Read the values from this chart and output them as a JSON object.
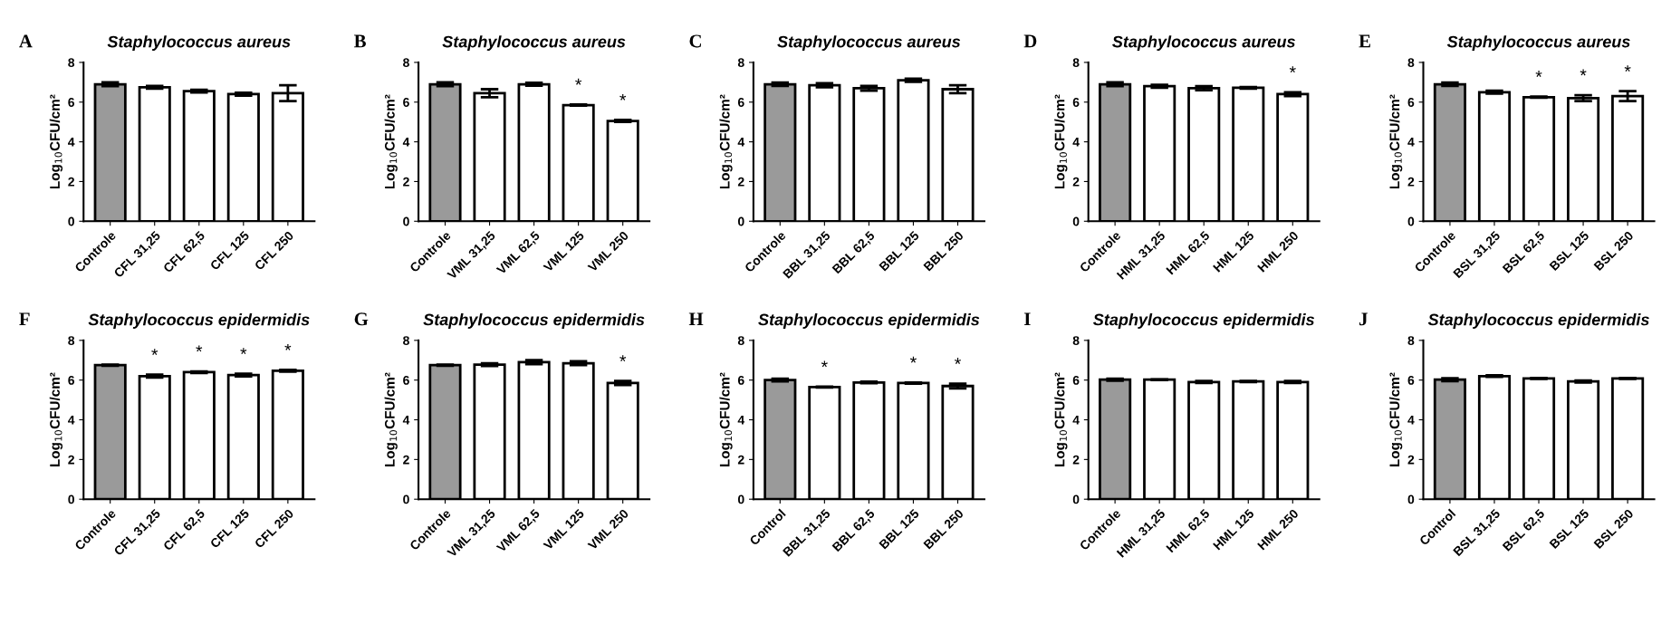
{
  "chart_data": [
    {
      "type": "bar",
      "title": "Staphylococcus aureus",
      "ylabel": "Log$_{10}$CFU/cm²",
      "categories": [
        "Controle",
        "CFL 31,25",
        "CFL 62,5",
        "CFL 125",
        "CFL 250"
      ],
      "values": [
        6.9,
        6.75,
        6.55,
        6.4,
        6.45
      ],
      "errors": [
        0.1,
        0.07,
        0.07,
        0.07,
        0.4
      ],
      "colors": [
        "#9a9a9a",
        "#ffffff",
        "#ffffff",
        "#ffffff",
        "#ffffff"
      ],
      "ylim": [
        0,
        8
      ],
      "yticks": [
        0,
        2,
        4,
        6,
        8
      ],
      "grid": false,
      "annotations": [
        "A"
      ]
    },
    {
      "type": "bar",
      "title": "Staphylococcus aureus",
      "ylabel": "Log$_{10}$CFU/cm²",
      "categories": [
        "Controle",
        "VML 31,25",
        "VML 62,5",
        "VML 125",
        "VML 250"
      ],
      "values": [
        6.9,
        6.45,
        6.9,
        5.85,
        5.05
      ],
      "errors": [
        0.1,
        0.2,
        0.07,
        0.03,
        0.05
      ],
      "colors": [
        "#9a9a9a",
        "#ffffff",
        "#ffffff",
        "#ffffff",
        "#ffffff"
      ],
      "ylim": [
        0,
        8
      ],
      "yticks": [
        0,
        2,
        4,
        6,
        8
      ],
      "grid": false,
      "annotations": [
        "B",
        {
          "text": "*",
          "x": "VML 125",
          "y": 5.85
        },
        {
          "text": "*",
          "x": "VML 250",
          "y": 5.05
        }
      ]
    },
    {
      "type": "bar",
      "title": "Staphylococcus aureus",
      "ylabel": "Log$_{10}$CFU/cm²",
      "categories": [
        "Controle",
        "BBL 31,25",
        "BBL 62,5",
        "BBL 125",
        "BBL 250"
      ],
      "values": [
        6.9,
        6.85,
        6.7,
        7.1,
        6.65
      ],
      "errors": [
        0.08,
        0.1,
        0.12,
        0.08,
        0.2
      ],
      "colors": [
        "#9a9a9a",
        "#ffffff",
        "#ffffff",
        "#ffffff",
        "#ffffff"
      ],
      "ylim": [
        0,
        8
      ],
      "yticks": [
        0,
        2,
        4,
        6,
        8
      ],
      "grid": false,
      "annotations": [
        "C"
      ]
    },
    {
      "type": "bar",
      "title": "Staphylococcus aureus",
      "ylabel": "Log$_{10}$CFU/cm²",
      "categories": [
        "Controle",
        "HML 31,25",
        "HML 62,5",
        "HML 125",
        "HML 250"
      ],
      "values": [
        6.9,
        6.8,
        6.7,
        6.72,
        6.4
      ],
      "errors": [
        0.1,
        0.07,
        0.1,
        0.04,
        0.1
      ],
      "colors": [
        "#9a9a9a",
        "#ffffff",
        "#ffffff",
        "#ffffff",
        "#ffffff"
      ],
      "ylim": [
        0,
        8
      ],
      "yticks": [
        0,
        2,
        4,
        6,
        8
      ],
      "grid": false,
      "annotations": [
        "D",
        {
          "text": "*",
          "x": "HML 250",
          "y": 6.4
        }
      ]
    },
    {
      "type": "bar",
      "title": "Staphylococcus aureus",
      "ylabel": "Log$_{10}$CFU/cm²",
      "categories": [
        "Controle",
        "BSL 31,25",
        "BSL 62,5",
        "BSL 125",
        "BSL 250"
      ],
      "values": [
        6.9,
        6.5,
        6.25,
        6.2,
        6.3
      ],
      "errors": [
        0.08,
        0.07,
        0.03,
        0.15,
        0.25
      ],
      "colors": [
        "#9a9a9a",
        "#ffffff",
        "#ffffff",
        "#ffffff",
        "#ffffff"
      ],
      "ylim": [
        0,
        8
      ],
      "yticks": [
        0,
        2,
        4,
        6,
        8
      ],
      "grid": false,
      "annotations": [
        "E",
        {
          "text": "*",
          "x": "BSL 62,5",
          "y": 6.25
        },
        {
          "text": "*",
          "x": "BSL 125",
          "y": 6.2
        },
        {
          "text": "*",
          "x": "BSL 250",
          "y": 6.3
        }
      ]
    },
    {
      "type": "bar",
      "title": "Staphylococcus epidermidis",
      "ylabel": "Log$_{10}$CFU/cm²",
      "categories": [
        "Controle",
        "CFL 31,25",
        "CFL 62,5",
        "CFL 125",
        "CFL 250"
      ],
      "values": [
        6.75,
        6.2,
        6.4,
        6.25,
        6.47
      ],
      "errors": [
        0.03,
        0.07,
        0.04,
        0.07,
        0.04
      ],
      "colors": [
        "#9a9a9a",
        "#ffffff",
        "#ffffff",
        "#ffffff",
        "#ffffff"
      ],
      "ylim": [
        0,
        8
      ],
      "yticks": [
        0,
        2,
        4,
        6,
        8
      ],
      "grid": false,
      "annotations": [
        "F",
        {
          "text": "*",
          "x": "CFL 31,25",
          "y": 6.2
        },
        {
          "text": "*",
          "x": "CFL 62,5",
          "y": 6.4
        },
        {
          "text": "*",
          "x": "CFL 125",
          "y": 6.25
        },
        {
          "text": "*",
          "x": "CFL 250",
          "y": 6.47
        }
      ]
    },
    {
      "type": "bar",
      "title": "Staphylococcus epidermidis",
      "ylabel": "Log$_{10}$CFU/cm²",
      "categories": [
        "Controle",
        "VML 31,25",
        "VML 62,5",
        "VML 125",
        "VML 250"
      ],
      "values": [
        6.75,
        6.78,
        6.9,
        6.85,
        5.85
      ],
      "errors": [
        0.03,
        0.07,
        0.1,
        0.1,
        0.1
      ],
      "colors": [
        "#9a9a9a",
        "#ffffff",
        "#ffffff",
        "#ffffff",
        "#ffffff"
      ],
      "ylim": [
        0,
        8
      ],
      "yticks": [
        0,
        2,
        4,
        6,
        8
      ],
      "grid": false,
      "annotations": [
        "G",
        {
          "text": "*",
          "x": "VML 250",
          "y": 5.85
        }
      ]
    },
    {
      "type": "bar",
      "title": "Staphylococcus epidermidis",
      "ylabel": "Log$_{10}$CFU/cm²",
      "categories": [
        "Control",
        "BBL 31,25",
        "BBL 62,5",
        "BBL 125",
        "BBL 250"
      ],
      "values": [
        6.0,
        5.65,
        5.88,
        5.85,
        5.7
      ],
      "errors": [
        0.07,
        0.02,
        0.04,
        0.03,
        0.12
      ],
      "colors": [
        "#9a9a9a",
        "#ffffff",
        "#ffffff",
        "#ffffff",
        "#ffffff"
      ],
      "ylim": [
        0,
        8
      ],
      "yticks": [
        0,
        2,
        4,
        6,
        8
      ],
      "grid": false,
      "annotations": [
        "H",
        {
          "text": "*",
          "x": "BBL 31,25",
          "y": 5.65
        },
        {
          "text": "*",
          "x": "BBL 125",
          "y": 5.85
        },
        {
          "text": "*",
          "x": "BBL 250",
          "y": 5.7
        }
      ]
    },
    {
      "type": "bar",
      "title": "Staphylococcus epidermidis",
      "ylabel": "Log$_{10}$CFU/cm²",
      "categories": [
        "Controle",
        "HML 31,25",
        "HML 62,5",
        "HML 125",
        "HML 250"
      ],
      "values": [
        6.02,
        6.02,
        5.9,
        5.93,
        5.9
      ],
      "errors": [
        0.05,
        0.02,
        0.05,
        0.03,
        0.05
      ],
      "colors": [
        "#9a9a9a",
        "#ffffff",
        "#ffffff",
        "#ffffff",
        "#ffffff"
      ],
      "ylim": [
        0,
        8
      ],
      "yticks": [
        0,
        2,
        4,
        6,
        8
      ],
      "grid": false,
      "annotations": [
        "I"
      ]
    },
    {
      "type": "bar",
      "title": "Staphylococcus epidermidis",
      "ylabel": "Log$_{10}$CFU/cm²",
      "categories": [
        "Control",
        "BSL 31,25",
        "BSL 62,5",
        "BSL 125",
        "BSL 250"
      ],
      "values": [
        6.02,
        6.2,
        6.08,
        5.93,
        6.08
      ],
      "errors": [
        0.07,
        0.04,
        0.02,
        0.05,
        0.02
      ],
      "colors": [
        "#9a9a9a",
        "#ffffff",
        "#ffffff",
        "#ffffff",
        "#ffffff"
      ],
      "ylim": [
        0,
        8
      ],
      "yticks": [
        0,
        2,
        4,
        6,
        8
      ],
      "grid": false,
      "annotations": [
        "J"
      ]
    }
  ]
}
